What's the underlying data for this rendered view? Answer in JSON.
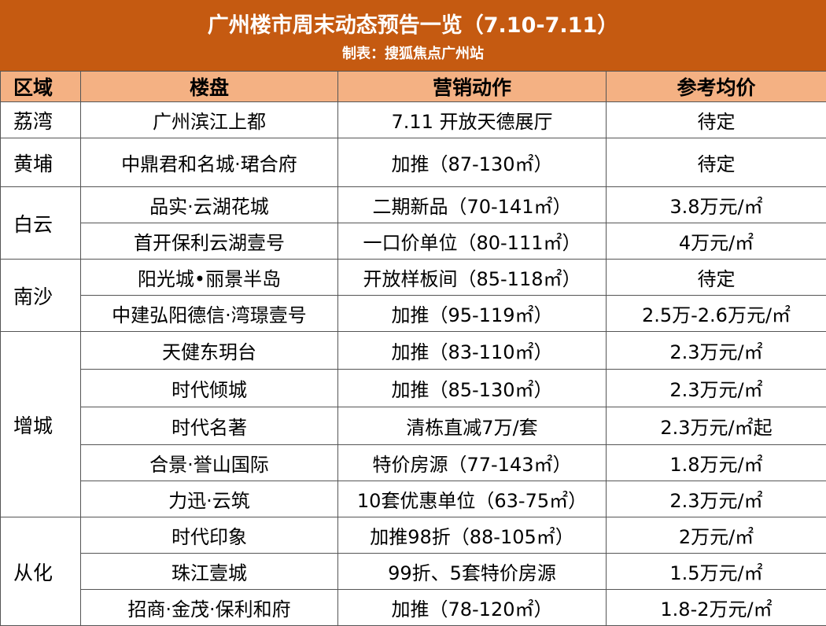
{
  "header": {
    "title": "广州楼市周末动态预告一览（7.10-7.11）",
    "subtitle": "制表：搜狐焦点广州站"
  },
  "table": {
    "columns": [
      "区域",
      "楼盘",
      "营销动作",
      "参考均价"
    ],
    "groups": [
      {
        "region": "荔湾",
        "rows": [
          {
            "project": "广州滨江上都",
            "action": "7.11 开放天德展厅",
            "price": "待定"
          }
        ]
      },
      {
        "region": "黄埔",
        "rows": [
          {
            "project": "中鼎君和名城·珺合府",
            "action": "加推（87-130㎡）",
            "price": "待定"
          }
        ]
      },
      {
        "region": "白云",
        "rows": [
          {
            "project": "品实·云湖花城",
            "action": "二期新品（70-141㎡）",
            "price": "3.8万元/㎡"
          },
          {
            "project": "首开保利云湖壹号",
            "action": "一口价单位（80-111㎡）",
            "price": "4万元/㎡"
          }
        ]
      },
      {
        "region": "南沙",
        "rows": [
          {
            "project": "阳光城•丽景半岛",
            "action": "开放样板间（85-118㎡）",
            "price": "待定"
          },
          {
            "project": "中建弘阳德信·湾璟壹号",
            "action": "加推（95-119㎡）",
            "price": "2.5万-2.6万元/㎡"
          }
        ]
      },
      {
        "region": "增城",
        "rows": [
          {
            "project": "天健东玥台",
            "action": "加推（83-110㎡）",
            "price": "2.3万元/㎡"
          },
          {
            "project": "时代倾城",
            "action": "加推（85-130㎡）",
            "price": "2.3万元/㎡"
          },
          {
            "project": "时代名著",
            "action": "清栋直减7万/套",
            "price": "2.3万元/㎡起"
          },
          {
            "project": "合景·誉山国际",
            "action": "特价房源（77-143㎡）",
            "price": "1.8万元/㎡"
          },
          {
            "project": "力迅·云筑",
            "action": "10套优惠单位（63-75㎡）",
            "price": "2.3万元/㎡"
          }
        ]
      },
      {
        "region": "从化",
        "rows": [
          {
            "project": "时代印象",
            "action": "加推98折（88-105㎡）",
            "price": "2万元/㎡"
          },
          {
            "project": "珠江壹城",
            "action": "99折、5套特价房源",
            "price": "1.5万元/㎡"
          },
          {
            "project": "招商·金茂·保利和府",
            "action": "加推（78-120㎡）",
            "price": "1.8-2万元/㎡"
          }
        ]
      }
    ]
  }
}
